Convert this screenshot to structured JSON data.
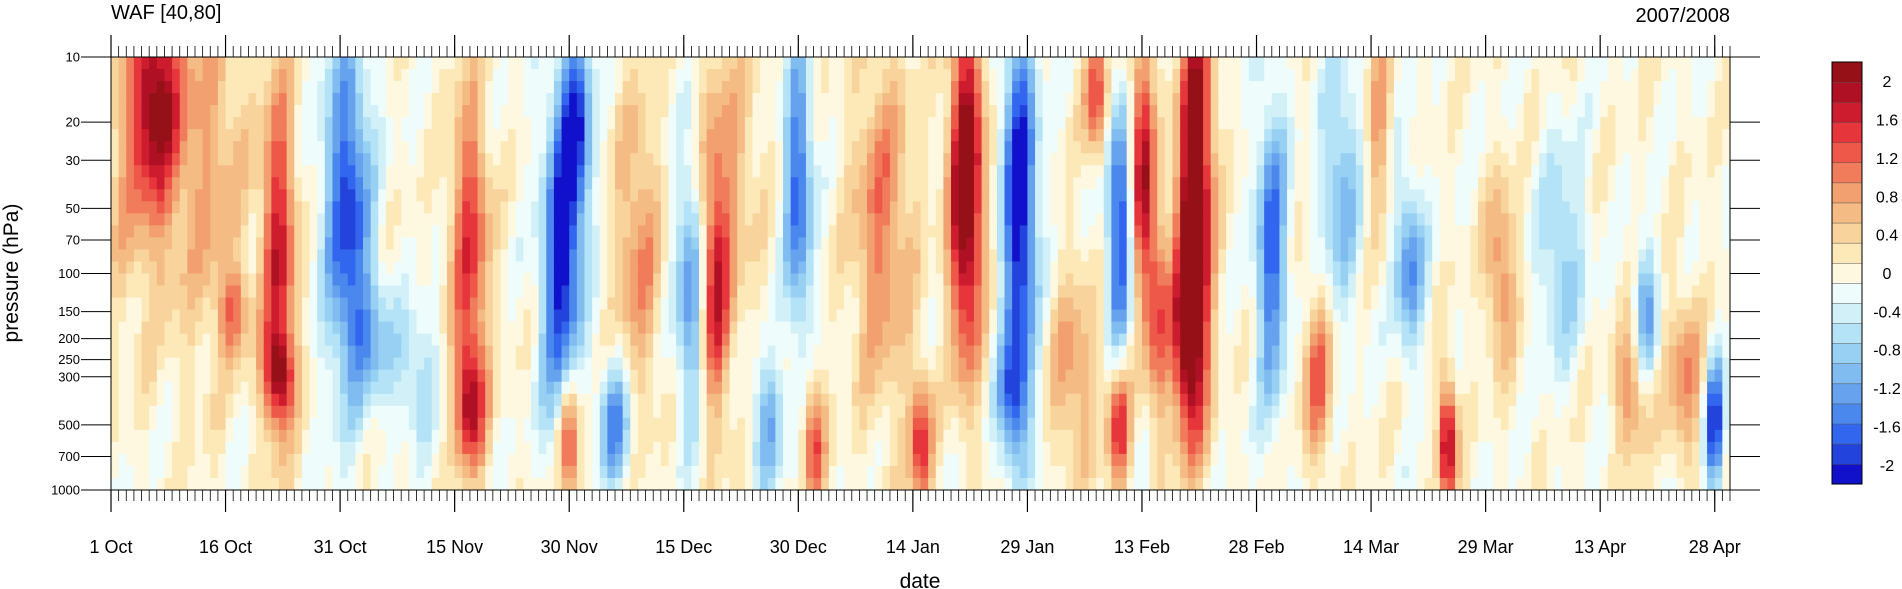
{
  "chart_data": {
    "type": "heatmap",
    "title_left": "WAF [40,80]",
    "title_right": "2007/2008",
    "xlabel": "date",
    "ylabel": "pressure (hPa)",
    "x_ticks": [
      "1 Oct",
      "16 Oct",
      "31 Oct",
      "15 Nov",
      "30 Nov",
      "15 Dec",
      "30 Dec",
      "14 Jan",
      "29 Jan",
      "13 Feb",
      "28 Feb",
      "14 Mar",
      "29 Mar",
      "13 Apr",
      "28 Apr"
    ],
    "x_tick_days": [
      0,
      15,
      30,
      45,
      60,
      75,
      90,
      105,
      120,
      135,
      150,
      165,
      180,
      195,
      210
    ],
    "x_range_days": [
      0,
      212
    ],
    "y_scale": "log",
    "y_ticks": [
      10,
      20,
      30,
      50,
      70,
      100,
      150,
      200,
      250,
      300,
      500,
      700,
      1000
    ],
    "y_range": [
      10,
      1000
    ],
    "colorbar": {
      "levels": [
        -2.2,
        -2,
        -1.8,
        -1.6,
        -1.4,
        -1.2,
        -1,
        -0.8,
        -0.6,
        -0.4,
        -0.2,
        0,
        0.2,
        0.4,
        0.6,
        0.8,
        1,
        1.2,
        1.4,
        1.6,
        1.8,
        2,
        2.2
      ],
      "tick_labels": [
        "-2",
        "-1.6",
        "-1.2",
        "-0.8",
        "-0.4",
        "0",
        "0.4",
        "0.8",
        "1.2",
        "1.6",
        "2"
      ],
      "tick_values": [
        -2,
        -1.6,
        -1.2,
        -0.8,
        -0.4,
        0,
        0.4,
        0.8,
        1.2,
        1.6,
        2
      ],
      "colors": [
        "#1111cc",
        "#2244dd",
        "#3366ee",
        "#4a88ee",
        "#66a2ee",
        "#80bcf0",
        "#98d0f4",
        "#b4e2f6",
        "#d2f0f8",
        "#eefcfc",
        "#fff8e0",
        "#fde8b8",
        "#f8d49c",
        "#f4bc84",
        "#f2a070",
        "#f07c5c",
        "#ee5848",
        "#e6363c",
        "#cc1c2e",
        "#b01024",
        "#961018"
      ]
    },
    "features": [
      {
        "day": 4,
        "p": 25,
        "v": 0.8,
        "w": 5,
        "h": 0.8
      },
      {
        "day": 6,
        "p": 15,
        "v": 1.5,
        "w": 3,
        "h": 0.45
      },
      {
        "day": 13,
        "p": 30,
        "v": 0.7,
        "w": 5,
        "h": 0.9
      },
      {
        "day": 16,
        "p": 150,
        "v": 0.9,
        "w": 2,
        "h": 0.2
      },
      {
        "day": 22,
        "p": 80,
        "v": 1.6,
        "w": 2.2,
        "h": 0.8
      },
      {
        "day": 22,
        "p": 300,
        "v": 1.4,
        "w": 2,
        "h": 0.2
      },
      {
        "day": 31,
        "p": 50,
        "v": -1.8,
        "w": 3,
        "h": 0.8
      },
      {
        "day": 34,
        "p": 200,
        "v": -0.8,
        "w": 3,
        "h": 0.3
      },
      {
        "day": 40,
        "p": 300,
        "v": -0.7,
        "w": 3,
        "h": 0.3
      },
      {
        "day": 47,
        "p": 70,
        "v": 1.4,
        "w": 2.5,
        "h": 0.7
      },
      {
        "day": 47,
        "p": 400,
        "v": 1.6,
        "w": 2,
        "h": 0.3
      },
      {
        "day": 59,
        "p": 100,
        "v": -2.0,
        "w": 2.5,
        "h": 0.8
      },
      {
        "day": 61,
        "p": 20,
        "v": -1.6,
        "w": 2,
        "h": 0.5
      },
      {
        "day": 60,
        "p": 600,
        "v": 1.8,
        "w": 1.5,
        "h": 0.35
      },
      {
        "day": 66,
        "p": 500,
        "v": -1.4,
        "w": 2,
        "h": 0.3
      },
      {
        "day": 69,
        "p": 80,
        "v": 0.9,
        "w": 3,
        "h": 0.7
      },
      {
        "day": 76,
        "p": 120,
        "v": -1.4,
        "w": 2,
        "h": 0.6
      },
      {
        "day": 79,
        "p": 120,
        "v": 1.5,
        "w": 2,
        "h": 0.6
      },
      {
        "day": 81,
        "p": 30,
        "v": 0.6,
        "w": 4,
        "h": 0.8
      },
      {
        "day": 86,
        "p": 500,
        "v": -1.1,
        "w": 2,
        "h": 0.3
      },
      {
        "day": 90,
        "p": 40,
        "v": -1.6,
        "w": 1.8,
        "h": 0.7
      },
      {
        "day": 92,
        "p": 600,
        "v": 1.3,
        "w": 1.5,
        "h": 0.3
      },
      {
        "day": 101,
        "p": 60,
        "v": 1.0,
        "w": 4,
        "h": 0.8
      },
      {
        "day": 106,
        "p": 600,
        "v": 1.5,
        "w": 1.5,
        "h": 0.3
      },
      {
        "day": 112,
        "p": 40,
        "v": 2.5,
        "w": 2.2,
        "h": 0.8
      },
      {
        "day": 119,
        "p": 50,
        "v": -2.2,
        "w": 2.2,
        "h": 0.9
      },
      {
        "day": 118,
        "p": 400,
        "v": -1.2,
        "w": 2,
        "h": 0.3
      },
      {
        "day": 126,
        "p": 300,
        "v": 0.8,
        "w": 3,
        "h": 0.5
      },
      {
        "day": 129,
        "p": 15,
        "v": 1.4,
        "w": 1.5,
        "h": 0.3
      },
      {
        "day": 132,
        "p": 60,
        "v": -1.8,
        "w": 1.6,
        "h": 0.6
      },
      {
        "day": 132,
        "p": 500,
        "v": 1.6,
        "w": 1.5,
        "h": 0.3
      },
      {
        "day": 135,
        "p": 30,
        "v": 1.8,
        "w": 1.5,
        "h": 0.6
      },
      {
        "day": 137,
        "p": 150,
        "v": 1.3,
        "w": 1.6,
        "h": 0.5
      },
      {
        "day": 142,
        "p": 40,
        "v": 2.5,
        "w": 2.2,
        "h": 0.9
      },
      {
        "day": 141,
        "p": 200,
        "v": 1.7,
        "w": 2,
        "h": 0.5
      },
      {
        "day": 152,
        "p": 80,
        "v": -1.6,
        "w": 2,
        "h": 0.7
      },
      {
        "day": 158,
        "p": 300,
        "v": 1.1,
        "w": 2,
        "h": 0.4
      },
      {
        "day": 161,
        "p": 40,
        "v": -1.0,
        "w": 2.5,
        "h": 0.6
      },
      {
        "day": 166,
        "p": 20,
        "v": 0.8,
        "w": 1.5,
        "h": 0.5
      },
      {
        "day": 170,
        "p": 90,
        "v": -1.3,
        "w": 2,
        "h": 0.4
      },
      {
        "day": 175,
        "p": 600,
        "v": 2.0,
        "w": 1.2,
        "h": 0.3
      },
      {
        "day": 182,
        "p": 100,
        "v": 1.0,
        "w": 2,
        "h": 0.4
      },
      {
        "day": 190,
        "p": 80,
        "v": -0.8,
        "w": 3,
        "h": 0.5
      },
      {
        "day": 199,
        "p": 350,
        "v": 1.0,
        "w": 2,
        "h": 0.3
      },
      {
        "day": 201,
        "p": 150,
        "v": -1.2,
        "w": 1.5,
        "h": 0.3
      },
      {
        "day": 206,
        "p": 300,
        "v": 0.9,
        "w": 2.5,
        "h": 0.4
      },
      {
        "day": 210,
        "p": 500,
        "v": -2.0,
        "w": 1.2,
        "h": 0.3
      }
    ]
  }
}
